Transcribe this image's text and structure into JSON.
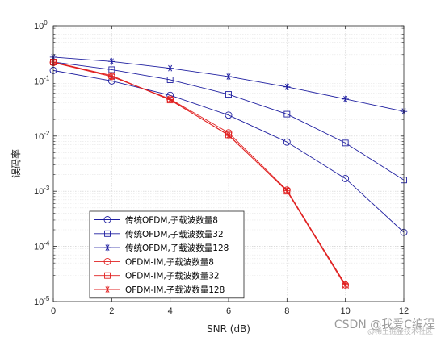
{
  "chart_data": {
    "type": "line",
    "title": "",
    "xlabel": "SNR (dB)",
    "ylabel": "误码率",
    "xlim": [
      0,
      12
    ],
    "ylim": [
      1e-05,
      1
    ],
    "yscale": "log",
    "xticks": [
      0,
      2,
      4,
      6,
      8,
      10,
      12
    ],
    "yticks": [
      {
        "value": 1,
        "base": "10",
        "exp": "0"
      },
      {
        "value": 0.1,
        "base": "10",
        "exp": "-1"
      },
      {
        "value": 0.01,
        "base": "10",
        "exp": "-2"
      },
      {
        "value": 0.001,
        "base": "10",
        "exp": "-3"
      },
      {
        "value": 0.0001,
        "base": "10",
        "exp": "-4"
      },
      {
        "value": 1e-05,
        "base": "10",
        "exp": "-5"
      }
    ],
    "grid": true,
    "legend_position": "bottom-left",
    "series": [
      {
        "name": "传统OFDM,子载波数量8",
        "color": "#1f1fa0",
        "marker": "circle",
        "x": [
          0,
          2,
          4,
          6,
          8,
          10,
          12
        ],
        "y": [
          0.155,
          0.1,
          0.055,
          0.024,
          0.0078,
          0.0017,
          0.00018
        ]
      },
      {
        "name": "传统OFDM,子载波数量32",
        "color": "#1f1fa0",
        "marker": "square",
        "x": [
          0,
          2,
          4,
          6,
          8,
          10,
          12
        ],
        "y": [
          0.22,
          0.16,
          0.105,
          0.057,
          0.025,
          0.0075,
          0.0016
        ]
      },
      {
        "name": "传统OFDM,子载波数量128",
        "color": "#1f1fa0",
        "marker": "star",
        "x": [
          0,
          2,
          4,
          6,
          8,
          10,
          12
        ],
        "y": [
          0.27,
          0.225,
          0.17,
          0.12,
          0.078,
          0.047,
          0.028
        ]
      },
      {
        "name": "OFDM-IM,子载波数量8",
        "color": "#e02020",
        "marker": "circle",
        "x": [
          0,
          2,
          4,
          6,
          8,
          10
        ],
        "y": [
          0.215,
          0.12,
          0.047,
          0.0115,
          0.00105,
          2e-05
        ]
      },
      {
        "name": "OFDM-IM,子载波数量32",
        "color": "#e02020",
        "marker": "square",
        "x": [
          0,
          2,
          4,
          6,
          8,
          10
        ],
        "y": [
          0.22,
          0.125,
          0.045,
          0.0105,
          0.001,
          1.9e-05
        ]
      },
      {
        "name": "OFDM-IM,子载波数量128",
        "color": "#e02020",
        "marker": "star",
        "x": [
          0,
          2,
          4,
          6,
          8,
          10
        ],
        "y": [
          0.22,
          0.12,
          0.046,
          0.0103,
          0.00102,
          2.05e-05
        ]
      }
    ]
  },
  "watermark": {
    "text": "CSDN @我爱C编程",
    "subtext": "@稀土掘金技术社区"
  }
}
